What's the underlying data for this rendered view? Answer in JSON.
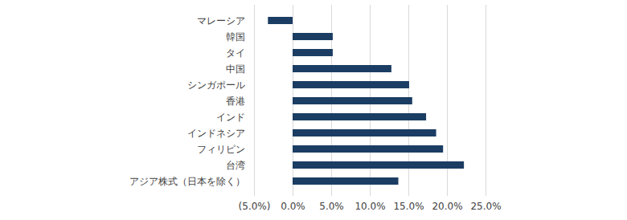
{
  "chart_data": {
    "type": "bar",
    "orientation": "horizontal",
    "categories": [
      "マレーシア",
      "韓国",
      "タイ",
      "中国",
      "シンガポール",
      "香港",
      "インド",
      "インドネシア",
      "フィリピン",
      "台湾",
      "アジア株式（日本を除く）"
    ],
    "values": [
      -3.2,
      5.2,
      5.2,
      12.8,
      15.1,
      15.5,
      17.3,
      18.6,
      19.5,
      22.2,
      13.7
    ],
    "color": "#1b3d63",
    "xlim": [
      -5,
      25
    ],
    "xticks": [
      {
        "value": -5,
        "label": "(5.0%)"
      },
      {
        "value": 0,
        "label": "0.0%"
      },
      {
        "value": 5,
        "label": "5.0%"
      },
      {
        "value": 10,
        "label": "10.0%"
      },
      {
        "value": 15,
        "label": "15.0%"
      },
      {
        "value": 20,
        "label": "20.0%"
      },
      {
        "value": 25,
        "label": "25.0%"
      }
    ],
    "grid": true
  }
}
